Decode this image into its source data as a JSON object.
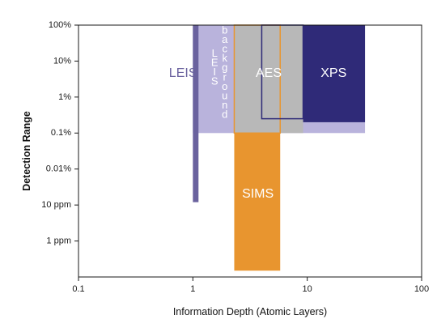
{
  "chart_data": {
    "type": "area",
    "xlabel": "Information Depth (Atomic Layers)",
    "ylabel": "Detection Range",
    "x_scale": "log",
    "xlim": [
      0.1,
      100
    ],
    "y_scale": "log",
    "ylim_fraction": [
      1e-07,
      1
    ],
    "x_ticks": [
      {
        "value": 0.1,
        "label": "0.1"
      },
      {
        "value": 1,
        "label": "1"
      },
      {
        "value": 10,
        "label": "10"
      },
      {
        "value": 100,
        "label": "100"
      }
    ],
    "y_ticks": [
      {
        "value": 1,
        "label": "100%"
      },
      {
        "value": 0.1,
        "label": "10%"
      },
      {
        "value": 0.01,
        "label": "1%"
      },
      {
        "value": 0.001,
        "label": "0.1%"
      },
      {
        "value": 0.0001,
        "label": "0.01%"
      },
      {
        "value": 1e-05,
        "label": "10 ppm"
      },
      {
        "value": 1e-06,
        "label": "1 ppm"
      }
    ],
    "grid": false,
    "regions": [
      {
        "name": "SIMS",
        "color": "#e8952f",
        "x_range": [
          2.3,
          5.8
        ],
        "y_range": [
          1.5e-07,
          1
        ]
      },
      {
        "name": "LEIS background",
        "color": "#b9b3dc",
        "x_range": [
          1.0,
          32
        ],
        "y_range": [
          0.001,
          1
        ]
      },
      {
        "name": "AES",
        "color": "#b8b8b8",
        "x_range": [
          2.3,
          9.2
        ],
        "y_range": [
          0.001,
          1
        ]
      },
      {
        "name": "XPS",
        "color": "#2f2a78",
        "x_range": [
          9.2,
          32
        ],
        "y_range": [
          0.002,
          1
        ]
      },
      {
        "name": "LEIS",
        "color": "#6a629e",
        "x_range": [
          1.0,
          1.12
        ],
        "y_range": [
          1.2e-05,
          1
        ]
      }
    ],
    "outlines": [
      {
        "name": "SIMS",
        "color": "#e8952f",
        "x_range": [
          2.3,
          5.8
        ],
        "y_range": [
          0.001,
          1
        ]
      },
      {
        "name": "XPS",
        "color": "#2f2a78",
        "x_range": [
          4.0,
          9.2
        ],
        "y_range": [
          0.0025,
          1
        ]
      }
    ],
    "labels": [
      {
        "text": "LEIS",
        "color": "#6a629e",
        "x": 0.82,
        "y": 0.045
      },
      {
        "text": "AES",
        "color": "#ffffff",
        "x": 4.6,
        "y": 0.045
      },
      {
        "text": "XPS",
        "color": "#ffffff",
        "x": 17,
        "y": 0.045
      },
      {
        "text": "SIMS",
        "color": "#ffffff",
        "x": 3.7,
        "y": 2e-05
      }
    ],
    "vertical_labels": [
      {
        "text": "LEIS",
        "x": 1.55,
        "y_top": 0.16
      },
      {
        "text": "background",
        "x": 1.9,
        "y_top": 0.7
      }
    ]
  }
}
